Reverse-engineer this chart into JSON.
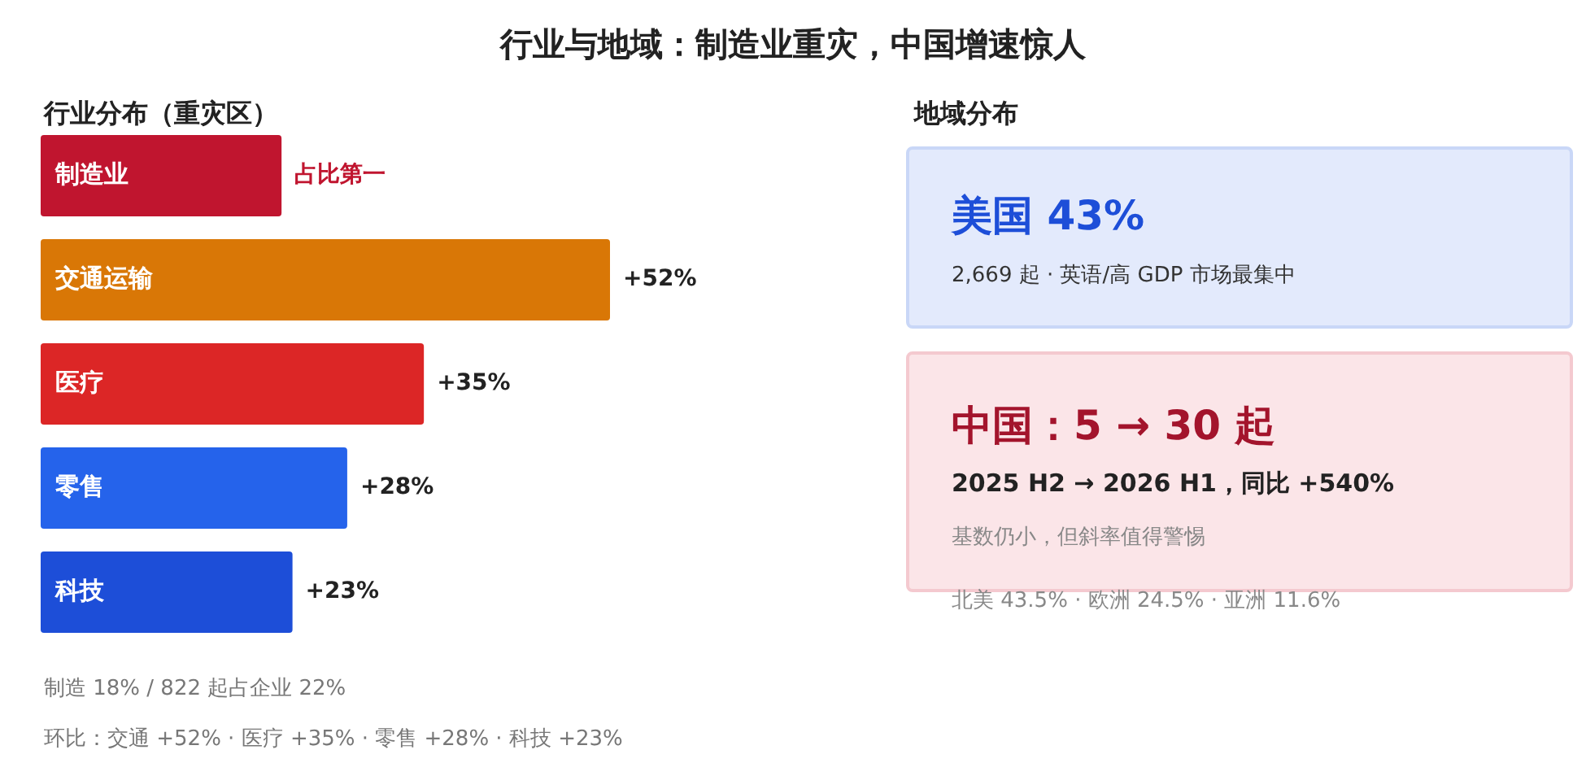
{
  "chart_data": [
    {
      "type": "bar",
      "title": "行业与地域：制造业重灾，中国增速惊人",
      "subtitle": "行业分布（重灾区）",
      "orientation": "horizontal",
      "categories": [
        "制造业",
        "交通运输",
        "医疗",
        "零售",
        "科技"
      ],
      "values": [
        22,
        52,
        35,
        28,
        23
      ],
      "colors": [
        "#c0152f",
        "#d97706",
        "#dc2626",
        "#2563eb",
        "#1d4ed8"
      ],
      "value_labels": [
        "占比第一",
        "+52%",
        "+35%",
        "+28%",
        "+23%"
      ],
      "annotations": [
        "制造 18% / 822 起占企业 22%",
        "环比：交通 +52% · 医疗 +35% · 零售 +28% · 科技 +23%"
      ]
    },
    {
      "type": "other",
      "title": "地域分布",
      "annotations": [
        "美国 43%",
        "2,669 起 · 英语/高 GDP 市场最集中",
        "中国：5 → 30 起",
        "2025 H2 → 2026 H1，同比 +540%",
        "基数仍小，但斜率值得警惕",
        "北美 43.5% · 欧洲 24.5% · 亚洲 11.6%"
      ]
    }
  ]
}
